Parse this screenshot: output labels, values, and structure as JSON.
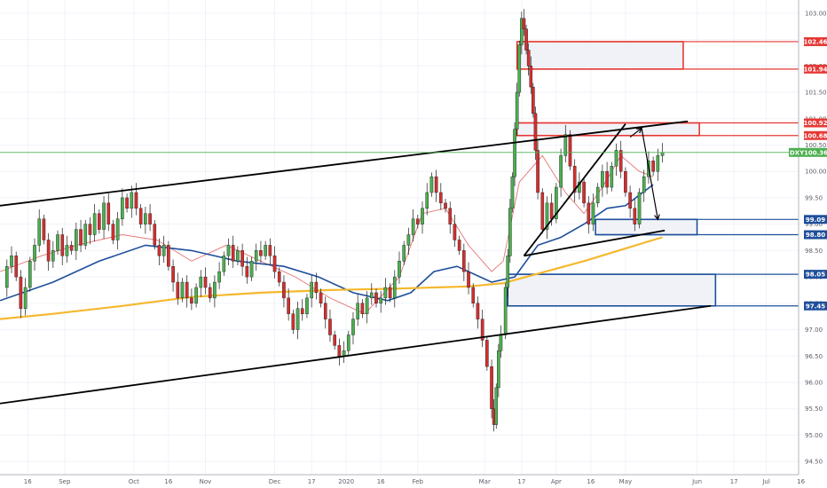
{
  "chart_data": {
    "type": "candlestick",
    "symbol": "DXY",
    "last_price": 100.36,
    "price_axis": {
      "range": [
        94.25,
        103.25
      ],
      "ticks": [
        "103.00",
        "102.50",
        "102.00",
        "101.50",
        "101.00",
        "100.50",
        "100.00",
        "99.50",
        "99.00",
        "98.50",
        "98.00",
        "97.50",
        "97.00",
        "96.50",
        "96.00",
        "95.50",
        "95.00",
        "94.50"
      ]
    },
    "time_axis": {
      "range_days": [
        -13,
        333
      ],
      "ticks": [
        {
          "label": "16",
          "day": -1
        },
        {
          "label": "Sep",
          "day": 15
        },
        {
          "label": "Oct",
          "day": 45
        },
        {
          "label": "16",
          "day": 60
        },
        {
          "label": "Nov",
          "day": 76
        },
        {
          "label": "Dec",
          "day": 106
        },
        {
          "label": "17",
          "day": 122
        },
        {
          "label": "2020",
          "day": 137
        },
        {
          "label": "16",
          "day": 152
        },
        {
          "label": "Feb",
          "day": 168
        },
        {
          "label": "Mar",
          "day": 197
        },
        {
          "label": "17",
          "day": 213
        },
        {
          "label": "Apr",
          "day": 228
        },
        {
          "label": "16",
          "day": 243
        },
        {
          "label": "May",
          "day": 258
        },
        {
          "label": "Jun",
          "day": 289
        },
        {
          "label": "17",
          "day": 305
        },
        {
          "label": "Jul",
          "day": 319
        },
        {
          "label": "16",
          "day": 334
        }
      ]
    },
    "levels": [
      {
        "label": "102.46",
        "price": 102.46,
        "color": "#e53935"
      },
      {
        "label": "101.94",
        "price": 101.94,
        "color": "#e53935"
      },
      {
        "label": "100.92",
        "price": 100.92,
        "color": "#e53935"
      },
      {
        "label": "100.68",
        "price": 100.68,
        "color": "#e53935"
      },
      {
        "label": "99.09",
        "price": 99.09,
        "color": "#1e4f9c"
      },
      {
        "label": "98.80",
        "price": 98.8,
        "color": "#1e4f9c"
      },
      {
        "label": "98.05",
        "price": 98.05,
        "color": "#1e4f9c"
      },
      {
        "label": "97.45",
        "price": 97.45,
        "color": "#1e4f9c"
      }
    ],
    "zones": [
      {
        "top": 102.46,
        "bottom": 101.94,
        "day_start": 211,
        "day_end": 283,
        "color": "#e53935"
      },
      {
        "top": 100.92,
        "bottom": 100.68,
        "day_start": 211,
        "day_end": 290,
        "color": "#e53935"
      },
      {
        "top": 99.09,
        "bottom": 98.8,
        "day_start": 245,
        "day_end": 289,
        "color": "#1e4f9c"
      },
      {
        "top": 98.05,
        "bottom": 97.45,
        "day_start": 207,
        "day_end": 297,
        "color": "#1e4f9c"
      }
    ],
    "trendlines": [
      {
        "name": "channel-upper",
        "points": [
          [
            -13,
            99.35
          ],
          [
            285,
            100.95
          ]
        ]
      },
      {
        "name": "channel-lower",
        "points": [
          [
            -13,
            95.6
          ],
          [
            295,
            97.45
          ]
        ]
      },
      {
        "name": "triangle-upper",
        "points": [
          [
            214,
            98.4
          ],
          [
            258,
            100.9
          ]
        ]
      },
      {
        "name": "triangle-lower",
        "points": [
          [
            214,
            98.4
          ],
          [
            275,
            98.88
          ]
        ]
      }
    ],
    "arrows": [
      {
        "points": [
          [
            260,
            100.65
          ],
          [
            265,
            100.82
          ]
        ]
      },
      {
        "points": [
          [
            265,
            100.82
          ],
          [
            272,
            99.09
          ]
        ]
      }
    ],
    "moving_averages": [
      {
        "name": "ema-short",
        "color": "#e57373",
        "points": [
          [
            -13,
            98.1
          ],
          [
            5,
            98.4
          ],
          [
            20,
            98.6
          ],
          [
            40,
            98.8
          ],
          [
            55,
            98.7
          ],
          [
            70,
            98.3
          ],
          [
            85,
            98.6
          ],
          [
            100,
            98.3
          ],
          [
            115,
            98.0
          ],
          [
            130,
            97.6
          ],
          [
            145,
            97.3
          ],
          [
            160,
            98.0
          ],
          [
            170,
            99.2
          ],
          [
            180,
            99.3
          ],
          [
            190,
            98.6
          ],
          [
            200,
            98.1
          ],
          [
            205,
            98.3
          ],
          [
            212,
            99.8
          ],
          [
            222,
            100.3
          ],
          [
            232,
            99.6
          ],
          [
            240,
            99.2
          ],
          [
            248,
            99.7
          ],
          [
            256,
            100.3
          ],
          [
            264,
            100.0
          ],
          [
            270,
            99.9
          ]
        ]
      },
      {
        "name": "ema-medium",
        "color": "#1e4f9c",
        "points": [
          [
            -13,
            97.55
          ],
          [
            10,
            97.9
          ],
          [
            30,
            98.3
          ],
          [
            50,
            98.6
          ],
          [
            70,
            98.5
          ],
          [
            90,
            98.3
          ],
          [
            110,
            98.2
          ],
          [
            125,
            98.0
          ],
          [
            140,
            97.7
          ],
          [
            155,
            97.55
          ],
          [
            165,
            97.7
          ],
          [
            175,
            98.1
          ],
          [
            185,
            98.2
          ],
          [
            200,
            97.9
          ],
          [
            210,
            98.0
          ],
          [
            220,
            98.6
          ],
          [
            230,
            98.75
          ],
          [
            240,
            99.0
          ],
          [
            250,
            99.3
          ],
          [
            258,
            99.35
          ],
          [
            264,
            99.55
          ],
          [
            270,
            99.75
          ]
        ]
      },
      {
        "name": "sma-long",
        "color": "#f5b82e",
        "points": [
          [
            -13,
            97.2
          ],
          [
            10,
            97.3
          ],
          [
            40,
            97.45
          ],
          [
            70,
            97.62
          ],
          [
            100,
            97.7
          ],
          [
            130,
            97.75
          ],
          [
            160,
            97.78
          ],
          [
            190,
            97.82
          ],
          [
            205,
            97.88
          ],
          [
            215,
            98.0
          ],
          [
            225,
            98.12
          ],
          [
            240,
            98.3
          ],
          [
            255,
            98.5
          ],
          [
            270,
            98.7
          ],
          [
            274,
            98.75
          ]
        ]
      }
    ],
    "candles_close": [
      [
        -12,
        97.8
      ],
      [
        -10,
        98.2
      ],
      [
        -8,
        98.4
      ],
      [
        -6,
        98.0
      ],
      [
        -4,
        97.4
      ],
      [
        -2,
        97.8
      ],
      [
        0,
        98.3
      ],
      [
        2,
        98.6
      ],
      [
        4,
        99.1
      ],
      [
        6,
        98.7
      ],
      [
        8,
        98.3
      ],
      [
        10,
        98.5
      ],
      [
        12,
        98.8
      ],
      [
        14,
        98.4
      ],
      [
        16,
        98.6
      ],
      [
        18,
        98.5
      ],
      [
        20,
        98.9
      ],
      [
        22,
        98.6
      ],
      [
        24,
        99.0
      ],
      [
        26,
        98.8
      ],
      [
        28,
        99.2
      ],
      [
        30,
        98.9
      ],
      [
        32,
        99.4
      ],
      [
        34,
        99.0
      ],
      [
        36,
        98.7
      ],
      [
        38,
        99.1
      ],
      [
        40,
        99.5
      ],
      [
        42,
        99.3
      ],
      [
        44,
        99.6
      ],
      [
        46,
        99.3
      ],
      [
        48,
        99.0
      ],
      [
        50,
        99.2
      ],
      [
        52,
        99.0
      ],
      [
        54,
        98.6
      ],
      [
        56,
        98.4
      ],
      [
        58,
        98.6
      ],
      [
        60,
        98.2
      ],
      [
        62,
        97.9
      ],
      [
        64,
        97.6
      ],
      [
        66,
        97.9
      ],
      [
        68,
        97.6
      ],
      [
        70,
        97.5
      ],
      [
        72,
        97.8
      ],
      [
        74,
        98.0
      ],
      [
        76,
        97.8
      ],
      [
        78,
        97.6
      ],
      [
        80,
        97.9
      ],
      [
        82,
        98.1
      ],
      [
        84,
        98.4
      ],
      [
        86,
        98.6
      ],
      [
        88,
        98.3
      ],
      [
        90,
        98.5
      ],
      [
        92,
        98.2
      ],
      [
        94,
        98.0
      ],
      [
        96,
        98.3
      ],
      [
        98,
        98.5
      ],
      [
        100,
        98.4
      ],
      [
        102,
        98.6
      ],
      [
        104,
        98.4
      ],
      [
        106,
        98.1
      ],
      [
        108,
        97.9
      ],
      [
        110,
        97.6
      ],
      [
        112,
        97.3
      ],
      [
        114,
        97.0
      ],
      [
        116,
        97.4
      ],
      [
        118,
        97.3
      ],
      [
        120,
        97.6
      ],
      [
        122,
        97.9
      ],
      [
        124,
        97.7
      ],
      [
        126,
        97.5
      ],
      [
        128,
        97.2
      ],
      [
        130,
        96.9
      ],
      [
        132,
        96.7
      ],
      [
        134,
        96.5
      ],
      [
        136,
        96.6
      ],
      [
        138,
        96.9
      ],
      [
        140,
        97.2
      ],
      [
        142,
        97.5
      ],
      [
        144,
        97.3
      ],
      [
        146,
        97.6
      ],
      [
        148,
        97.7
      ],
      [
        150,
        97.5
      ],
      [
        152,
        97.6
      ],
      [
        154,
        97.8
      ],
      [
        156,
        97.6
      ],
      [
        158,
        98.0
      ],
      [
        160,
        98.3
      ],
      [
        162,
        98.6
      ],
      [
        164,
        98.8
      ],
      [
        166,
        99.1
      ],
      [
        168,
        99.0
      ],
      [
        170,
        99.3
      ],
      [
        172,
        99.6
      ],
      [
        174,
        99.9
      ],
      [
        176,
        99.6
      ],
      [
        178,
        99.4
      ],
      [
        180,
        99.3
      ],
      [
        182,
        99.0
      ],
      [
        184,
        98.7
      ],
      [
        186,
        98.5
      ],
      [
        188,
        98.1
      ],
      [
        190,
        97.8
      ],
      [
        192,
        97.5
      ],
      [
        194,
        97.2
      ],
      [
        196,
        96.8
      ],
      [
        198,
        96.3
      ],
      [
        200,
        95.5
      ],
      [
        201,
        95.2
      ],
      [
        202,
        95.9
      ],
      [
        203,
        96.6
      ],
      [
        204,
        96.9
      ],
      [
        206,
        97.8
      ],
      [
        207,
        98.4
      ],
      [
        208,
        99.3
      ],
      [
        209,
        99.9
      ],
      [
        210,
        100.8
      ],
      [
        211,
        101.5
      ],
      [
        212,
        102.4
      ],
      [
        213,
        102.9
      ],
      [
        214,
        102.7
      ],
      [
        215,
        102.3
      ],
      [
        216,
        102.0
      ],
      [
        217,
        101.6
      ],
      [
        218,
        101.1
      ],
      [
        219,
        100.4
      ],
      [
        220,
        99.6
      ],
      [
        222,
        98.9
      ],
      [
        224,
        99.4
      ],
      [
        226,
        99.1
      ],
      [
        228,
        99.7
      ],
      [
        230,
        100.3
      ],
      [
        232,
        100.7
      ],
      [
        234,
        100.1
      ],
      [
        236,
        99.6
      ],
      [
        238,
        99.8
      ],
      [
        240,
        99.4
      ],
      [
        242,
        99.0
      ],
      [
        244,
        99.4
      ],
      [
        246,
        99.7
      ],
      [
        248,
        100.0
      ],
      [
        250,
        99.7
      ],
      [
        252,
        100.1
      ],
      [
        254,
        100.4
      ],
      [
        256,
        100.0
      ],
      [
        258,
        99.6
      ],
      [
        260,
        99.3
      ],
      [
        262,
        99.0
      ],
      [
        264,
        99.6
      ],
      [
        266,
        99.9
      ],
      [
        268,
        100.2
      ],
      [
        270,
        100.0
      ],
      [
        272,
        100.3
      ],
      [
        274,
        100.36
      ]
    ]
  }
}
